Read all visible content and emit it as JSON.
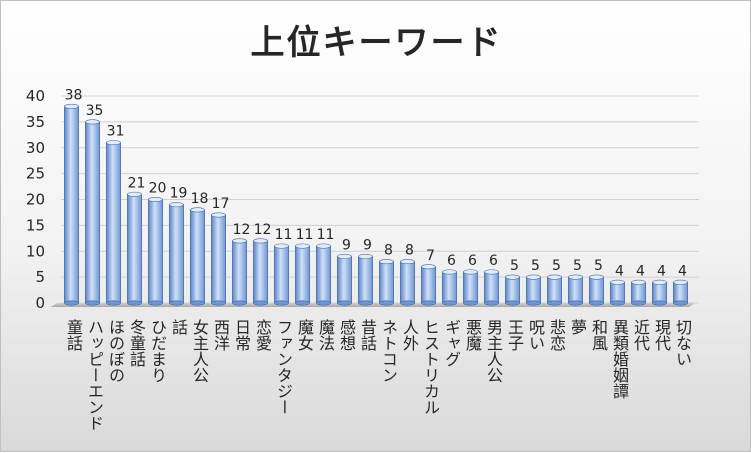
{
  "chart_data": {
    "type": "bar",
    "title": "上位キーワード",
    "xlabel": "",
    "ylabel": "",
    "ylim": [
      0,
      40
    ],
    "yticks": [
      0,
      5,
      10,
      15,
      20,
      25,
      30,
      35,
      40
    ],
    "grid": true,
    "legend": "none",
    "bar_color": "#8fb3e6",
    "categories": [
      "童話",
      "ハッピーエンド",
      "ほのぼの",
      "冬童話",
      "ひだまり",
      "話",
      "女主人公",
      "西洋",
      "日常",
      "恋愛",
      "ファンタジー",
      "魔女",
      "魔法",
      "感想",
      "昔話",
      "ネトコン",
      "人外",
      "ヒストリカル",
      "ギャグ",
      "悪魔",
      "男主人公",
      "王子",
      "呪い",
      "悲恋",
      "夢",
      "和風",
      "異類婚姻譚",
      "近代",
      "現代",
      "切ない"
    ],
    "values": [
      38,
      35,
      31,
      21,
      20,
      19,
      18,
      17,
      12,
      12,
      11,
      11,
      11,
      9,
      9,
      8,
      8,
      7,
      6,
      6,
      6,
      5,
      5,
      5,
      5,
      5,
      4,
      4,
      4,
      4
    ]
  }
}
